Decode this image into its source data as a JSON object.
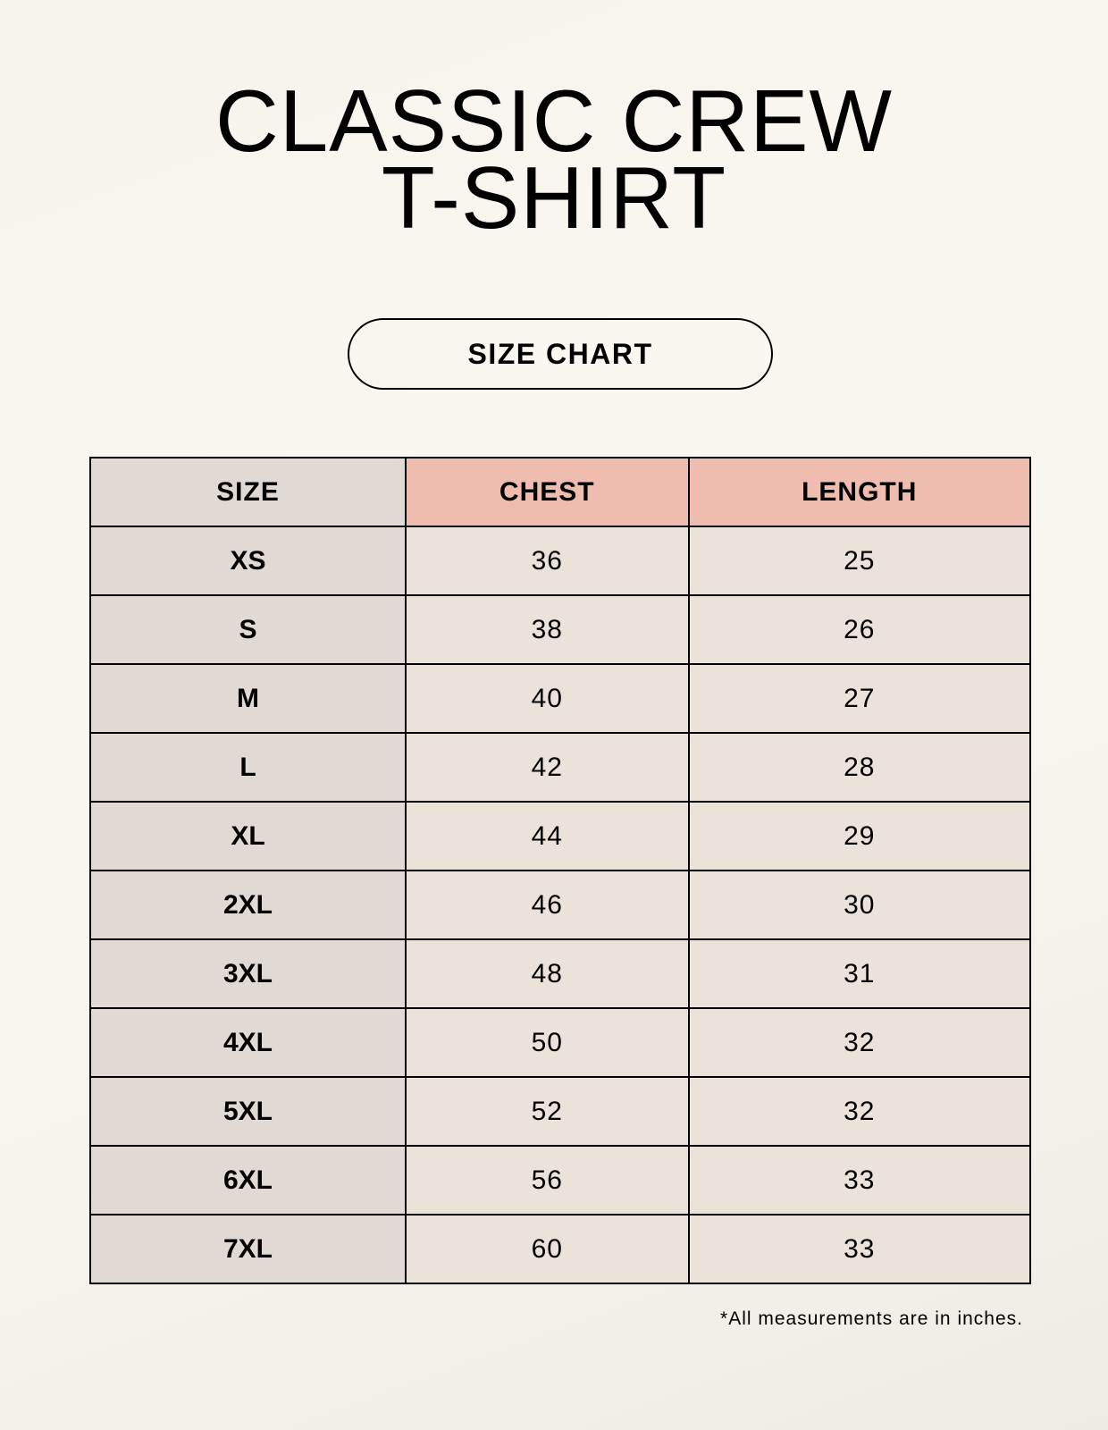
{
  "title": {
    "line1": "CLASSIC CREW",
    "line2": "T-SHIRT"
  },
  "badge": "SIZE CHART",
  "table": {
    "headers": [
      "SIZE",
      "CHEST",
      "LENGTH"
    ],
    "rows": [
      [
        "XS",
        "36",
        "25"
      ],
      [
        "S",
        "38",
        "26"
      ],
      [
        "M",
        "40",
        "27"
      ],
      [
        "L",
        "42",
        "28"
      ],
      [
        "XL",
        "44",
        "29"
      ],
      [
        "2XL",
        "46",
        "30"
      ],
      [
        "3XL",
        "48",
        "31"
      ],
      [
        "4XL",
        "50",
        "32"
      ],
      [
        "5XL",
        "52",
        "32"
      ],
      [
        "6XL",
        "56",
        "33"
      ],
      [
        "7XL",
        "60",
        "33"
      ]
    ]
  },
  "footnote": "*All measurements are in inches.",
  "colors": {
    "size_column": "#e1d9d3",
    "header_accent": "#efbdb0",
    "value_cells": "#ebe3d9"
  }
}
